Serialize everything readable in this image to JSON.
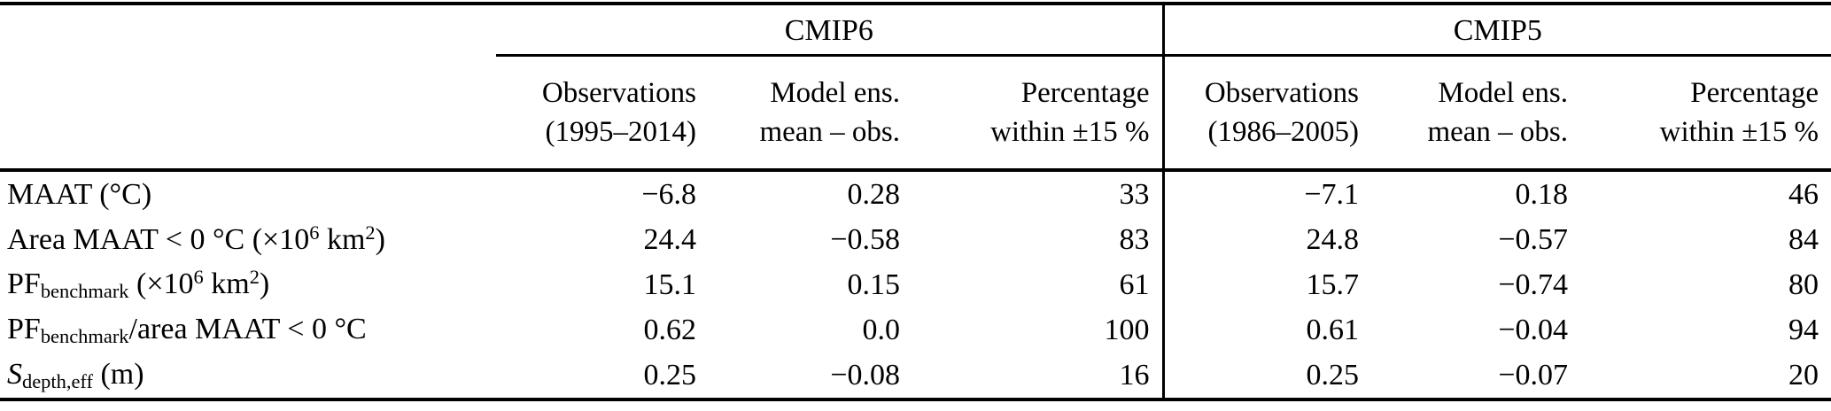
{
  "table": {
    "groups": [
      {
        "label": "CMIP6"
      },
      {
        "label": "CMIP5"
      }
    ],
    "columns": [
      {
        "line1": "Observations",
        "line2": "(1995–2014)"
      },
      {
        "line1": "Model ens.",
        "line2": "mean – obs."
      },
      {
        "line1": "Percentage",
        "line2": "within ±15 %"
      },
      {
        "line1": "Observations",
        "line2": "(1986–2005)"
      },
      {
        "line1": "Model ens.",
        "line2": "mean – obs."
      },
      {
        "line1": "Percentage",
        "line2": "within ±15 %"
      }
    ],
    "rows": [
      {
        "label_parts": [
          "MAAT (°C)"
        ],
        "values": [
          "−6.8",
          "0.28",
          "33",
          "−7.1",
          "0.18",
          "46"
        ]
      },
      {
        "label_parts": [
          "Area MAAT < 0 °C (×10",
          "6",
          " km",
          "2",
          ")"
        ],
        "values": [
          "24.4",
          "−0.58",
          "83",
          "24.8",
          "−0.57",
          "84"
        ]
      },
      {
        "label_parts": [
          "PF",
          "benchmark",
          " (×10",
          "6",
          " km",
          "2",
          ")"
        ],
        "values": [
          "15.1",
          "0.15",
          "61",
          "15.7",
          "−0.74",
          "80"
        ]
      },
      {
        "label_parts": [
          "PF",
          "benchmark",
          "/area MAAT < 0 °C"
        ],
        "values": [
          "0.62",
          "0.0",
          "100",
          "0.61",
          "−0.04",
          "94"
        ]
      },
      {
        "label_parts": [
          "S",
          "depth,eff",
          " (m)"
        ],
        "values": [
          "0.25",
          "−0.08",
          "16",
          "0.25",
          "−0.07",
          "20"
        ]
      }
    ],
    "colors": {
      "rule": "#000000",
      "text": "#000000",
      "background": "#ffffff"
    }
  }
}
